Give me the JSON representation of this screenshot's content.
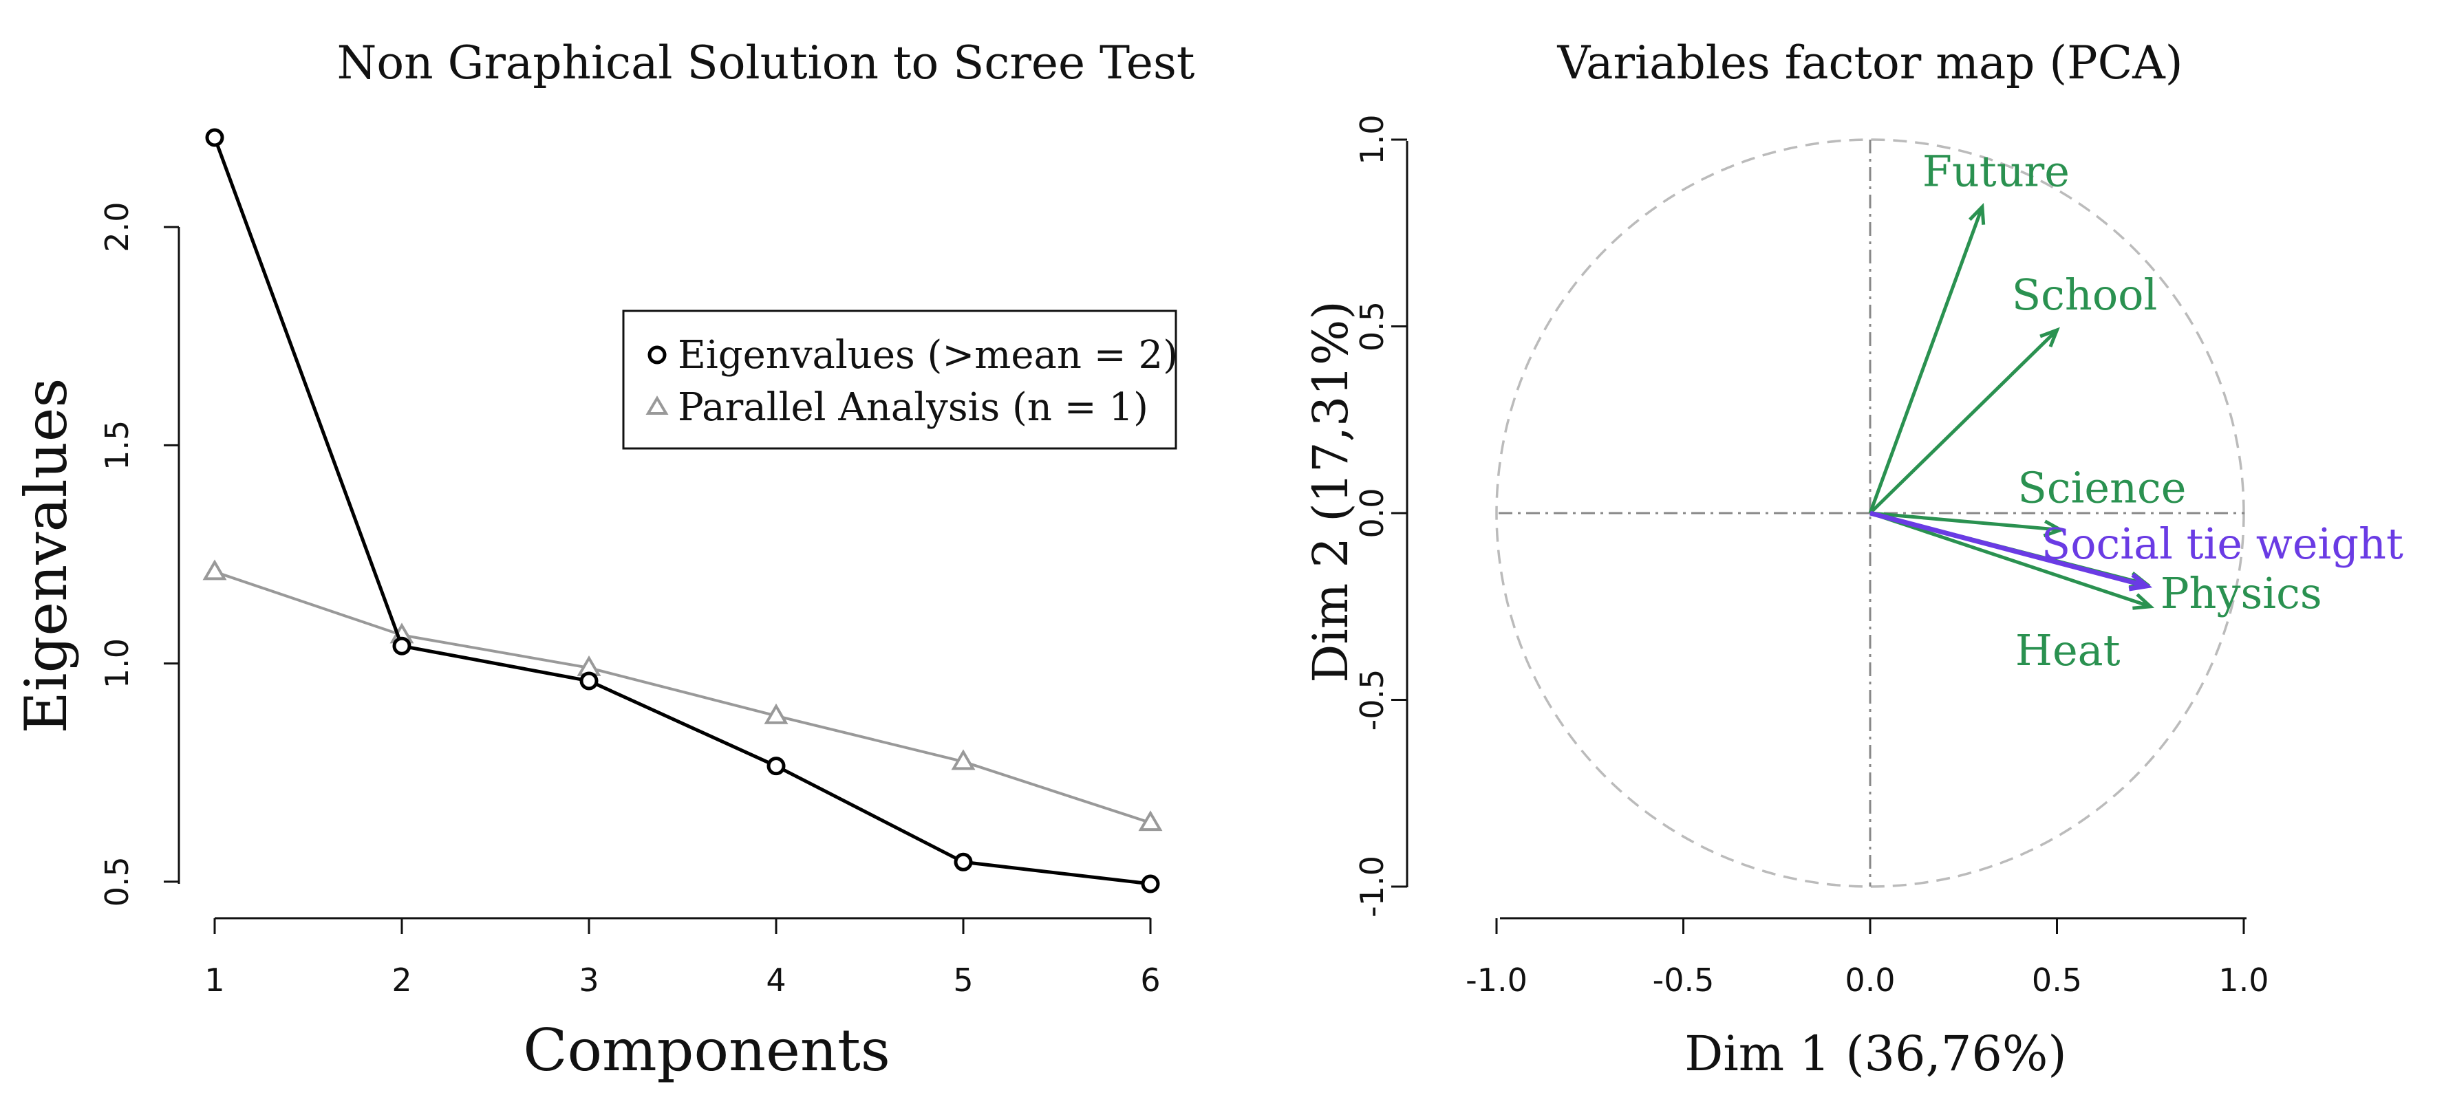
{
  "chart_data": [
    {
      "type": "line",
      "title": "Non Graphical Solution to Scree Test",
      "xlabel": "Components",
      "ylabel": "Eigenvalues",
      "x": [
        1,
        2,
        3,
        4,
        5,
        6
      ],
      "xticks": [
        "1",
        "2",
        "3",
        "4",
        "5",
        "6"
      ],
      "yticks": [
        "0.5",
        "1.0",
        "1.5",
        "2.0"
      ],
      "xlim": [
        1,
        6
      ],
      "ylim": [
        0.49,
        2.21
      ],
      "grid": false,
      "legend_position": "top-right",
      "series": [
        {
          "name": "Eigenvalues (>mean = 2)",
          "values": [
            2.205,
            1.04,
            0.96,
            0.765,
            0.545,
            0.495
          ],
          "color": "#000000",
          "marker": "circle"
        },
        {
          "name": "Parallel Analysis (n = 1)",
          "values": [
            1.21,
            1.065,
            0.99,
            0.88,
            0.775,
            0.635
          ],
          "color": "#999999",
          "marker": "triangle"
        }
      ]
    },
    {
      "type": "scatter",
      "title": "Variables factor map (PCA)",
      "xlabel": "Dim 1 (36,76%)",
      "ylabel": "Dim 2 (17,31%)",
      "xticks": [
        "-1.0",
        "-0.5",
        "0.0",
        "0.5",
        "1.0"
      ],
      "yticks": [
        "-1.0",
        "-0.5",
        "0.0",
        "0.5",
        "1.0"
      ],
      "xlim": [
        -1.0,
        1.0
      ],
      "ylim": [
        -1.0,
        1.0
      ],
      "grid": false,
      "unit_circle": true,
      "series": [
        {
          "name": "Future",
          "x": 0.3,
          "y": 0.82,
          "color": "#2a9150"
        },
        {
          "name": "School",
          "x": 0.5,
          "y": 0.49,
          "color": "#2a9150"
        },
        {
          "name": "Science",
          "x": 0.51,
          "y": -0.045,
          "color": "#2a9150"
        },
        {
          "name": "Heat",
          "x": 0.75,
          "y": -0.25,
          "color": "#2a9150"
        },
        {
          "name": "Physics",
          "x": 0.74,
          "y": -0.19,
          "color": "#2a9150"
        },
        {
          "name": "Social tie weight",
          "x": 0.74,
          "y": -0.195,
          "color": "#6a3be4"
        }
      ]
    }
  ]
}
